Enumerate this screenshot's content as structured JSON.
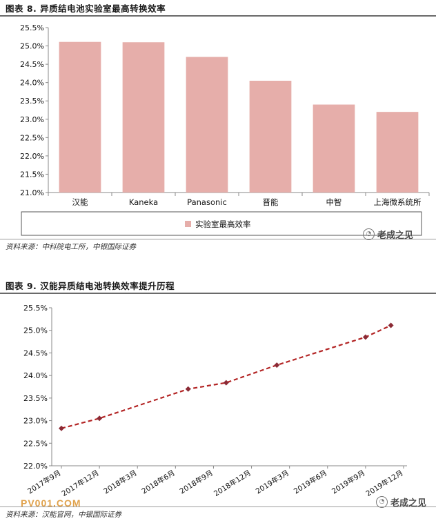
{
  "figure8": {
    "title": "图表 8. 异质结电池实验室最高转换效率",
    "source": "资料来源：中科院电工所，中银国际证券",
    "watermark": "老成之见",
    "chart_data": {
      "type": "bar",
      "categories": [
        "汉能",
        "Kaneka",
        "Panasonic",
        "晋能",
        "中智",
        "上海微系统所"
      ],
      "series": [
        {
          "name": "实验室最高效率",
          "values": [
            25.11,
            25.1,
            24.7,
            24.05,
            23.4,
            23.2
          ]
        }
      ],
      "yticks": [
        "21.0%",
        "21.5%",
        "22.0%",
        "22.5%",
        "23.0%",
        "23.5%",
        "24.0%",
        "24.5%",
        "25.0%",
        "25.5%"
      ],
      "ylim": [
        21.0,
        25.5
      ],
      "color": "#e6aeaa",
      "grid": false,
      "legend_position": "bottom"
    }
  },
  "figure9": {
    "title": "图表 9. 汉能异质结电池转换效率提升历程",
    "source": "资料来源：汉能官网，中银国际证券",
    "watermark": "老成之见",
    "site_watermark": "PV001.COM",
    "chart_data": {
      "type": "line",
      "x_ticks": [
        "2017年9月",
        "2017年12月",
        "2018年3月",
        "2018年6月",
        "2018年9月",
        "2018年12月",
        "2019年3月",
        "2019年6月",
        "2019年9月",
        "2019年12月"
      ],
      "points": [
        {
          "x": "2017-09",
          "y": 22.83
        },
        {
          "x": "2017-12",
          "y": 23.05
        },
        {
          "x": "2018-07",
          "y": 23.7
        },
        {
          "x": "2018-10",
          "y": 23.84
        },
        {
          "x": "2019-02",
          "y": 24.23
        },
        {
          "x": "2019-09",
          "y": 24.85
        },
        {
          "x": "2019-11",
          "y": 25.11
        }
      ],
      "yticks": [
        "22.0%",
        "22.5%",
        "23.0%",
        "23.5%",
        "24.0%",
        "24.5%",
        "25.0%",
        "25.5%"
      ],
      "ylim": [
        22.0,
        25.5
      ],
      "line_color": "#b32424",
      "marker_color": "#8b2a35",
      "line_style": "dashed",
      "grid": false
    }
  }
}
